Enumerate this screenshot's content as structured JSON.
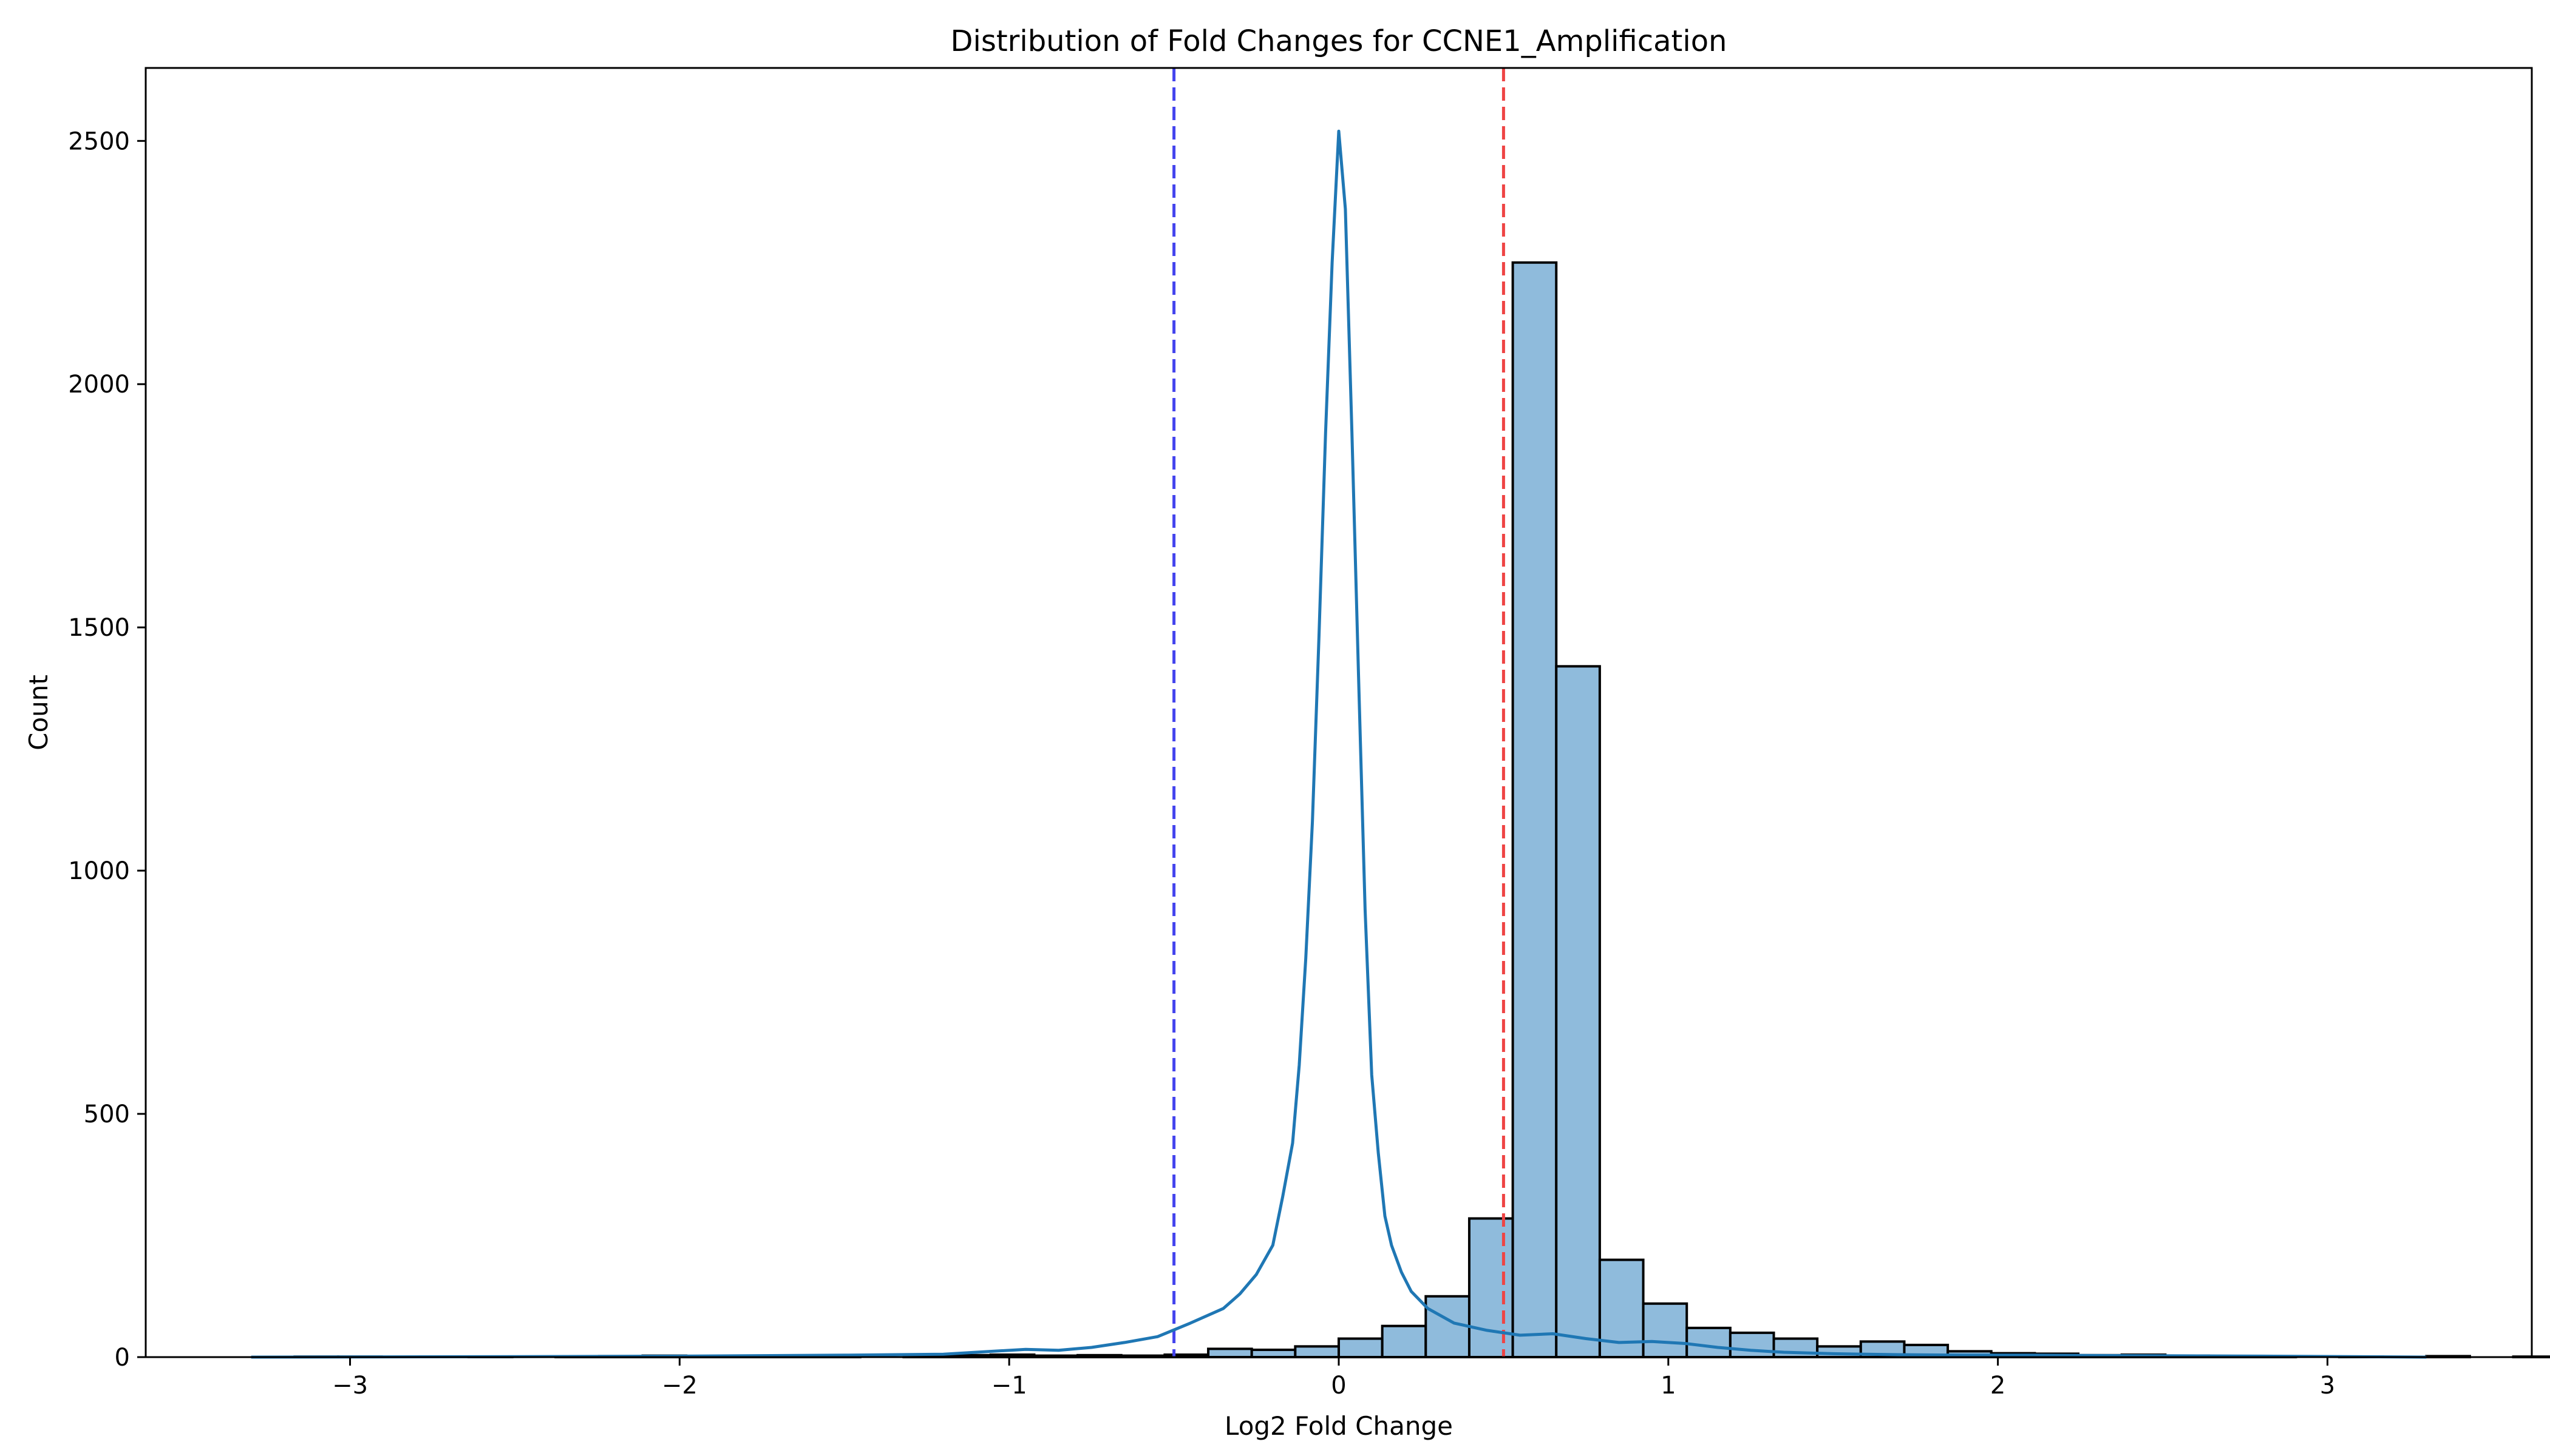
{
  "chart_data": {
    "type": "bar",
    "subtype": "histogram",
    "title": "Distribution of Fold Changes for CCNE1_Amplification",
    "xlabel": "Log2 Fold Change",
    "ylabel": "Count",
    "xlim": [
      -3.62,
      3.62
    ],
    "ylim": [
      0,
      2650
    ],
    "xticks": [
      -3,
      -2,
      -1,
      0,
      1,
      2,
      3
    ],
    "xtick_labels": [
      "−3",
      "−2",
      "−1",
      "0",
      "1",
      "2",
      "3"
    ],
    "yticks": [
      0,
      500,
      1000,
      1500,
      2000,
      2500
    ],
    "ytick_labels": [
      "0",
      "500",
      "1000",
      "1500",
      "2000",
      "2500"
    ],
    "grid": false,
    "bin_start": -3.3,
    "bin_width": 0.132,
    "counts": [
      0,
      1,
      1,
      0,
      0,
      1,
      0,
      1,
      2,
      3,
      1,
      2,
      3,
      1,
      0,
      2,
      4,
      5,
      3,
      4,
      3,
      5,
      17,
      15,
      22,
      38,
      64,
      125,
      285,
      2250,
      1420,
      200,
      110,
      60,
      50,
      38,
      22,
      32,
      25,
      12,
      8,
      7,
      4,
      5,
      3,
      2,
      1,
      0,
      1,
      0,
      2,
      0,
      1
    ],
    "kde": {
      "x": [
        -3.3,
        -2.5,
        -2.0,
        -1.5,
        -1.2,
        -1.05,
        -0.95,
        -0.85,
        -0.75,
        -0.65,
        -0.55,
        -0.45,
        -0.35,
        -0.3,
        -0.25,
        -0.2,
        -0.17,
        -0.14,
        -0.12,
        -0.1,
        -0.08,
        -0.06,
        -0.04,
        -0.02,
        0.0,
        0.02,
        0.04,
        0.06,
        0.08,
        0.1,
        0.12,
        0.14,
        0.16,
        0.19,
        0.22,
        0.27,
        0.35,
        0.45,
        0.55,
        0.65,
        0.75,
        0.85,
        0.95,
        1.05,
        1.15,
        1.25,
        1.35,
        1.5,
        1.7,
        1.9,
        2.1,
        2.4,
        2.8,
        3.3
      ],
      "y": [
        0,
        1,
        2,
        4,
        6,
        12,
        16,
        14,
        20,
        30,
        42,
        70,
        100,
        130,
        170,
        230,
        330,
        440,
        600,
        820,
        1100,
        1480,
        1900,
        2250,
        2520,
        2360,
        1900,
        1400,
        920,
        580,
        420,
        290,
        230,
        175,
        135,
        100,
        70,
        55,
        45,
        48,
        38,
        30,
        32,
        28,
        20,
        14,
        10,
        7,
        5,
        4,
        4,
        3,
        2,
        0
      ]
    },
    "vlines": [
      {
        "x": -0.5,
        "color": "#4444ee",
        "style": "dashed"
      },
      {
        "x": 0.5,
        "color": "#ee4444",
        "style": "dashed"
      }
    ],
    "colors": {
      "bar_fill": "#8fbbdc",
      "bar_edge": "#000000",
      "kde_line": "#1f77b4"
    }
  }
}
